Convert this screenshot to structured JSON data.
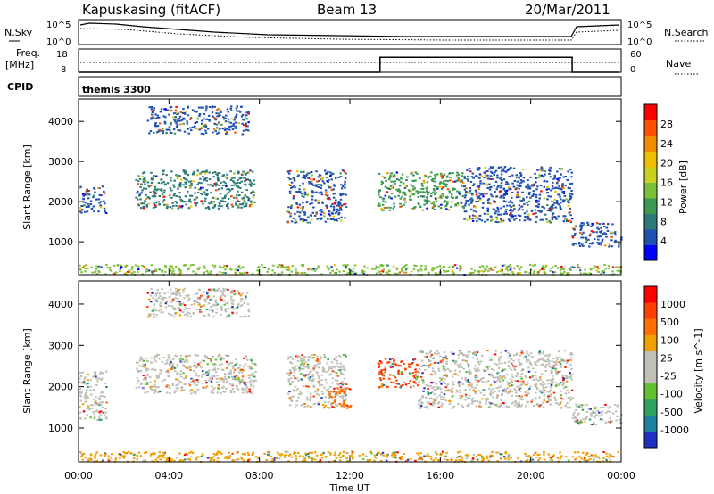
{
  "header": {
    "station": "Kapuskasing (fitACF)",
    "beam": "Beam 13",
    "date": "20/Mar/2011"
  },
  "nsky_panel": {
    "left_label": "N.Sky",
    "left_ticks": [
      "10^5",
      "10^0"
    ],
    "right_label": "N.Search",
    "right_ticks": [
      "10^5",
      "10^0"
    ]
  },
  "freq_panel": {
    "left_label_line1": "Freq.",
    "left_label_line2": "[MHz]",
    "left_ticks": [
      "18",
      "8"
    ],
    "right_label": "Nave",
    "right_ticks": [
      "60",
      "0"
    ],
    "freq_mhz_steps": [
      {
        "start": "00:00",
        "end": "13:20",
        "value": 8
      },
      {
        "start": "13:20",
        "end": "21:50",
        "value": 15
      },
      {
        "start": "21:50",
        "end": "24:00",
        "value": 8
      }
    ]
  },
  "cpid_panel": {
    "label": "CPID",
    "mode": "themis 3300"
  },
  "chart_data": [
    {
      "type": "heatmap",
      "name": "power",
      "ylabel": "Slant Range [km]",
      "xlabel": "",
      "xlim": [
        "00:00",
        "24:00"
      ],
      "ylim": [
        180,
        4560
      ],
      "yticks": [
        "4000",
        "3000",
        "2000",
        "1000"
      ],
      "colorbar": {
        "label": "Power [dB]",
        "ticks": [
          "28",
          "24",
          "20",
          "16",
          "12",
          "8",
          "4"
        ],
        "colors": [
          "#0000ff",
          "#2050b0",
          "#2a7a7a",
          "#3c9a50",
          "#7cc038",
          "#c8d020",
          "#f0c000",
          "#f08c00",
          "#ff5000",
          "#ff0000"
        ]
      },
      "background": "#ffffff",
      "echo_regions": [
        {
          "t0": 0.0,
          "t1": 1.2,
          "r0": 1700,
          "r1": 2400,
          "color": "#2050b0"
        },
        {
          "t0": 2.5,
          "t1": 7.8,
          "r0": 1850,
          "r1": 2800,
          "color": "#2a7a7a"
        },
        {
          "t0": 3.0,
          "t1": 7.5,
          "r0": 3700,
          "r1": 4400,
          "color": "#2050b0"
        },
        {
          "t0": 9.2,
          "t1": 11.8,
          "r0": 1500,
          "r1": 2800,
          "color": "#2050b0"
        },
        {
          "t0": 13.2,
          "t1": 17.0,
          "r0": 1800,
          "r1": 2750,
          "color": "#3c9a50"
        },
        {
          "t0": 17.0,
          "t1": 21.8,
          "r0": 1500,
          "r1": 2900,
          "color": "#2050b0"
        },
        {
          "t0": 21.8,
          "t1": 24.0,
          "r0": 900,
          "r1": 1500,
          "color": "#2050b0"
        },
        {
          "t0": 0.0,
          "t1": 24.0,
          "r0": 200,
          "r1": 450,
          "color": "#7cc038"
        }
      ]
    },
    {
      "type": "heatmap",
      "name": "velocity",
      "ylabel": "Slant Range [km]",
      "xlabel": "Time UT",
      "xlim": [
        "00:00",
        "24:00"
      ],
      "ylim": [
        180,
        4560
      ],
      "yticks": [
        "4000",
        "3000",
        "2000",
        "1000"
      ],
      "xticks": [
        "00:00",
        "04:00",
        "08:00",
        "12:00",
        "16:00",
        "20:00",
        "00:00"
      ],
      "colorbar": {
        "label": "Velocity [m s^-1]",
        "ticks": [
          "1000",
          "500",
          "100",
          "25",
          "-25",
          "-100",
          "-500",
          "-1000"
        ],
        "colors": [
          "#2030c0",
          "#2080a0",
          "#30a060",
          "#60c030",
          "#c0c0b8",
          "#c0c0b8",
          "#f0a000",
          "#ff7000",
          "#ff4000",
          "#ff0000"
        ]
      },
      "background": "#ffffff",
      "echo_regions": [
        {
          "t0": 0.0,
          "t1": 1.2,
          "r0": 1200,
          "r1": 2400,
          "color": "#c0c0b8"
        },
        {
          "t0": 2.5,
          "t1": 7.8,
          "r0": 1850,
          "r1": 2800,
          "color": "#c0c0b8"
        },
        {
          "t0": 3.0,
          "t1": 7.5,
          "r0": 3700,
          "r1": 4400,
          "color": "#c0c0b8"
        },
        {
          "t0": 9.2,
          "t1": 11.8,
          "r0": 1500,
          "r1": 2800,
          "color": "#c0c0b8"
        },
        {
          "t0": 11.0,
          "t1": 12.0,
          "r0": 1500,
          "r1": 2100,
          "color": "#ff7000"
        },
        {
          "t0": 13.2,
          "t1": 15.0,
          "r0": 2000,
          "r1": 2700,
          "color": "#ff4000"
        },
        {
          "t0": 15.0,
          "t1": 21.8,
          "r0": 1500,
          "r1": 2900,
          "color": "#c0c0b8"
        },
        {
          "t0": 21.8,
          "t1": 24.0,
          "r0": 1100,
          "r1": 1600,
          "color": "#c0c0b8"
        },
        {
          "t0": 0.0,
          "t1": 24.0,
          "r0": 200,
          "r1": 450,
          "color": "#f0a000"
        }
      ]
    }
  ]
}
